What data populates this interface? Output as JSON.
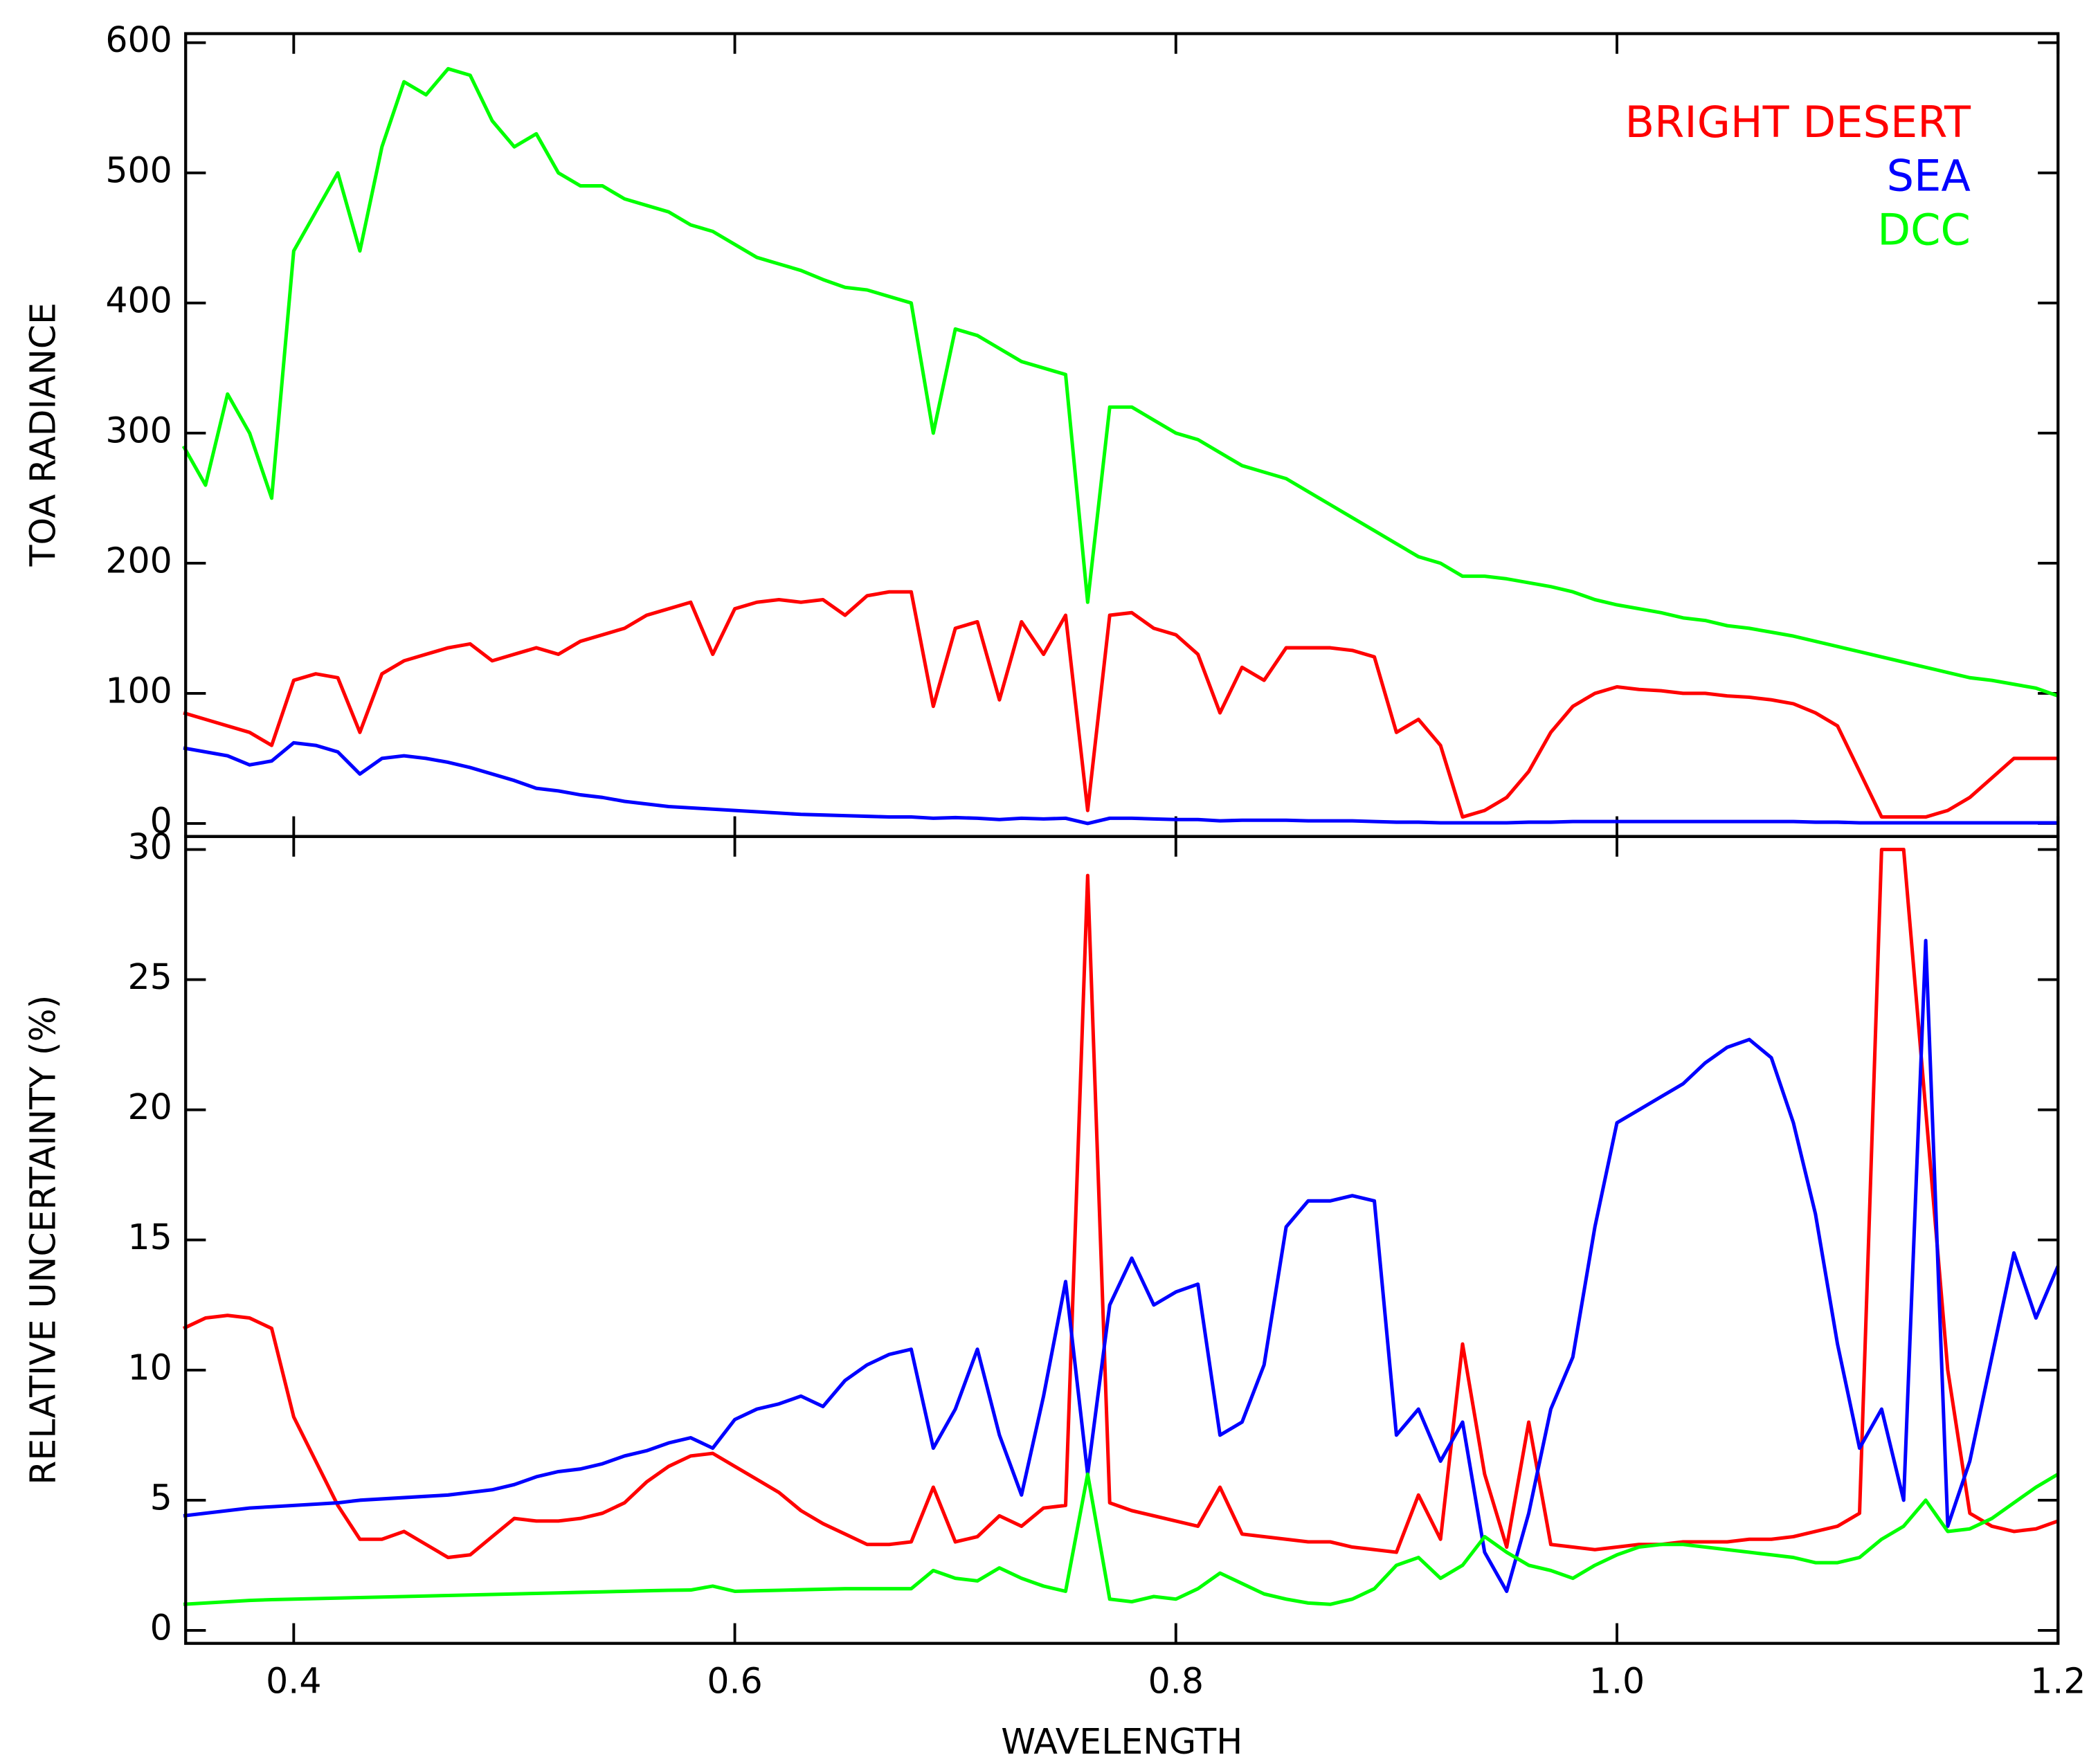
{
  "chart_data": [
    {
      "type": "line",
      "ylabel": "TOA RADIANCE",
      "x": [
        0.35,
        0.36,
        0.37,
        0.38,
        0.39,
        0.4,
        0.41,
        0.42,
        0.43,
        0.44,
        0.45,
        0.46,
        0.47,
        0.48,
        0.49,
        0.5,
        0.51,
        0.52,
        0.53,
        0.54,
        0.55,
        0.56,
        0.57,
        0.58,
        0.59,
        0.6,
        0.61,
        0.62,
        0.63,
        0.64,
        0.65,
        0.66,
        0.67,
        0.68,
        0.69,
        0.7,
        0.71,
        0.72,
        0.73,
        0.74,
        0.75,
        0.76,
        0.77,
        0.78,
        0.79,
        0.8,
        0.81,
        0.82,
        0.83,
        0.84,
        0.85,
        0.86,
        0.87,
        0.88,
        0.89,
        0.9,
        0.91,
        0.92,
        0.93,
        0.94,
        0.95,
        0.96,
        0.97,
        0.98,
        0.99,
        1.0,
        1.01,
        1.02,
        1.03,
        1.04,
        1.05,
        1.06,
        1.07,
        1.08,
        1.09,
        1.1,
        1.11,
        1.12,
        1.13,
        1.14,
        1.15,
        1.16,
        1.17,
        1.18,
        1.19,
        1.2
      ],
      "series": [
        {
          "name": "BRIGHT DESERT",
          "color": "#ff0000",
          "values": [
            85,
            80,
            75,
            70,
            60,
            110,
            115,
            112,
            70,
            115,
            125,
            130,
            135,
            138,
            125,
            130,
            135,
            130,
            140,
            145,
            150,
            160,
            165,
            170,
            130,
            165,
            170,
            172,
            170,
            172,
            160,
            175,
            178,
            178,
            90,
            150,
            155,
            95,
            155,
            130,
            160,
            10,
            160,
            162,
            150,
            145,
            130,
            85,
            120,
            110,
            135,
            135,
            135,
            133,
            128,
            70,
            80,
            60,
            5,
            10,
            20,
            40,
            70,
            90,
            100,
            105,
            103,
            102,
            100,
            100,
            98,
            97,
            95,
            92,
            85,
            75,
            40,
            5,
            5,
            5,
            10,
            20,
            35,
            50,
            50,
            50
          ]
        },
        {
          "name": "SEA",
          "color": "#0000ff",
          "values": [
            58,
            55,
            52,
            45,
            48,
            62,
            60,
            55,
            38,
            50,
            52,
            50,
            47,
            43,
            38,
            33,
            27,
            25,
            22,
            20,
            17,
            15,
            13,
            12,
            11,
            10,
            9,
            8,
            7,
            6.5,
            6,
            5.5,
            5,
            5,
            4,
            4.5,
            4,
            3,
            4,
            3.5,
            4,
            0,
            4,
            4,
            3.5,
            3,
            3,
            2,
            2.5,
            2.5,
            2.5,
            2,
            2,
            2,
            1.5,
            1,
            1,
            0.5,
            0.5,
            0.5,
            0.5,
            1,
            1,
            1.5,
            1.5,
            1.5,
            1.5,
            1.5,
            1.5,
            1.5,
            1.5,
            1.5,
            1.5,
            1.5,
            1,
            1,
            0.5,
            0.5,
            0.5,
            0.5,
            0.5,
            0.5,
            0.5,
            0.5,
            0.5,
            0.5
          ]
        },
        {
          "name": "DCC",
          "color": "#00ff00",
          "values": [
            290,
            260,
            330,
            300,
            250,
            440,
            470,
            500,
            440,
            520,
            570,
            560,
            580,
            575,
            540,
            520,
            530,
            500,
            490,
            490,
            480,
            475,
            470,
            460,
            455,
            445,
            435,
            430,
            425,
            418,
            412,
            410,
            405,
            400,
            300,
            380,
            375,
            365,
            355,
            350,
            345,
            170,
            320,
            320,
            310,
            300,
            295,
            285,
            275,
            270,
            265,
            255,
            245,
            235,
            225,
            215,
            205,
            200,
            190,
            190,
            188,
            185,
            182,
            178,
            172,
            168,
            165,
            162,
            158,
            156,
            152,
            150,
            147,
            144,
            140,
            136,
            132,
            128,
            124,
            120,
            116,
            112,
            110,
            107,
            104,
            98
          ]
        }
      ],
      "xlim": [
        0.351,
        1.2
      ],
      "ylim": [
        -10,
        607
      ],
      "yticks": [
        0,
        100,
        200,
        300,
        400,
        500,
        600
      ],
      "legend": "upper right"
    },
    {
      "type": "line",
      "ylabel": "RELATIVE UNCERTAINTY (%)",
      "xlabel": "WAVELENGTH",
      "x": [
        0.35,
        0.36,
        0.37,
        0.38,
        0.39,
        0.4,
        0.41,
        0.42,
        0.43,
        0.44,
        0.45,
        0.46,
        0.47,
        0.48,
        0.49,
        0.5,
        0.51,
        0.52,
        0.53,
        0.54,
        0.55,
        0.56,
        0.57,
        0.58,
        0.59,
        0.6,
        0.61,
        0.62,
        0.63,
        0.64,
        0.65,
        0.66,
        0.67,
        0.68,
        0.69,
        0.7,
        0.71,
        0.72,
        0.73,
        0.74,
        0.75,
        0.76,
        0.77,
        0.78,
        0.79,
        0.8,
        0.81,
        0.82,
        0.83,
        0.84,
        0.85,
        0.86,
        0.87,
        0.88,
        0.89,
        0.9,
        0.91,
        0.92,
        0.93,
        0.94,
        0.95,
        0.96,
        0.97,
        0.98,
        0.99,
        1.0,
        1.01,
        1.02,
        1.03,
        1.04,
        1.05,
        1.06,
        1.07,
        1.08,
        1.09,
        1.1,
        1.11,
        1.12,
        1.13,
        1.14,
        1.15,
        1.16,
        1.17,
        1.18,
        1.19,
        1.2
      ],
      "series": [
        {
          "color": "#ff0000",
          "values": [
            11.6,
            12,
            12.1,
            12,
            11.6,
            8.2,
            6.5,
            4.8,
            3.5,
            3.5,
            3.8,
            3.3,
            2.8,
            2.9,
            3.6,
            4.3,
            4.2,
            4.2,
            4.3,
            4.5,
            4.9,
            5.7,
            6.3,
            6.7,
            6.8,
            6.3,
            5.8,
            5.3,
            4.6,
            4.1,
            3.7,
            3.3,
            3.3,
            3.4,
            5.5,
            3.4,
            3.6,
            4.4,
            4,
            4.7,
            4.8,
            29,
            4.9,
            4.6,
            4.4,
            4.2,
            4,
            5.5,
            3.7,
            3.6,
            3.5,
            3.4,
            3.4,
            3.2,
            3.1,
            3,
            5.2,
            3.5,
            11,
            6,
            3.2,
            8,
            3.3,
            3.2,
            3.1,
            3.2,
            3.3,
            3.3,
            3.4,
            3.4,
            3.4,
            3.5,
            3.5,
            3.6,
            3.8,
            4,
            4.5,
            30,
            30,
            20,
            10,
            4.5,
            4,
            3.8,
            3.9,
            4.2
          ]
        },
        {
          "color": "#0000ff",
          "values": [
            4.4,
            4.5,
            4.6,
            4.7,
            4.75,
            4.8,
            4.85,
            4.9,
            5,
            5.05,
            5.1,
            5.15,
            5.2,
            5.3,
            5.4,
            5.6,
            5.9,
            6.1,
            6.2,
            6.4,
            6.7,
            6.9,
            7.2,
            7.4,
            7,
            8.1,
            8.5,
            8.7,
            9,
            8.6,
            9.6,
            10.2,
            10.6,
            10.8,
            7,
            8.5,
            10.8,
            7.5,
            5.2,
            9,
            13.4,
            6,
            12.5,
            14.3,
            12.5,
            13,
            13.3,
            7.5,
            8,
            10.2,
            15.5,
            16.5,
            16.5,
            16.7,
            16.5,
            7.5,
            8.5,
            6.5,
            8,
            3,
            1.5,
            4.5,
            8.5,
            10.5,
            15.5,
            19.5,
            20,
            20.5,
            21,
            21.8,
            22.4,
            22.7,
            22,
            19.5,
            16,
            11,
            7,
            8.5,
            5,
            26.5,
            4,
            6.5,
            10.5,
            14.5,
            12,
            14
          ]
        },
        {
          "color": "#00ff00",
          "values": [
            1,
            1.05,
            1.1,
            1.15,
            1.18,
            1.2,
            1.22,
            1.24,
            1.26,
            1.28,
            1.3,
            1.32,
            1.34,
            1.36,
            1.38,
            1.4,
            1.42,
            1.44,
            1.46,
            1.48,
            1.5,
            1.52,
            1.54,
            1.55,
            1.7,
            1.5,
            1.52,
            1.54,
            1.56,
            1.58,
            1.6,
            1.6,
            1.6,
            1.6,
            2.3,
            2,
            1.9,
            2.4,
            2,
            1.7,
            1.5,
            6,
            1.2,
            1.1,
            1.3,
            1.2,
            1.6,
            2.2,
            1.8,
            1.4,
            1.2,
            1.05,
            1,
            1.2,
            1.6,
            2.5,
            2.8,
            2,
            2.5,
            3.6,
            3,
            2.5,
            2.3,
            2,
            2.5,
            2.9,
            3.2,
            3.3,
            3.3,
            3.2,
            3.1,
            3,
            2.9,
            2.8,
            2.6,
            2.6,
            2.8,
            3.5,
            4,
            5,
            3.8,
            3.9,
            4.3,
            4.9,
            5.5,
            6
          ]
        }
      ],
      "xlim": [
        0.351,
        1.2
      ],
      "xticks": [
        0.4,
        0.6,
        0.8,
        {
          "value": 1,
          "label": "1.0"
        },
        1.2
      ],
      "ylim": [
        -0.5,
        30.5
      ],
      "yticks": [
        0,
        5,
        10,
        15,
        20,
        25,
        30
      ]
    }
  ]
}
